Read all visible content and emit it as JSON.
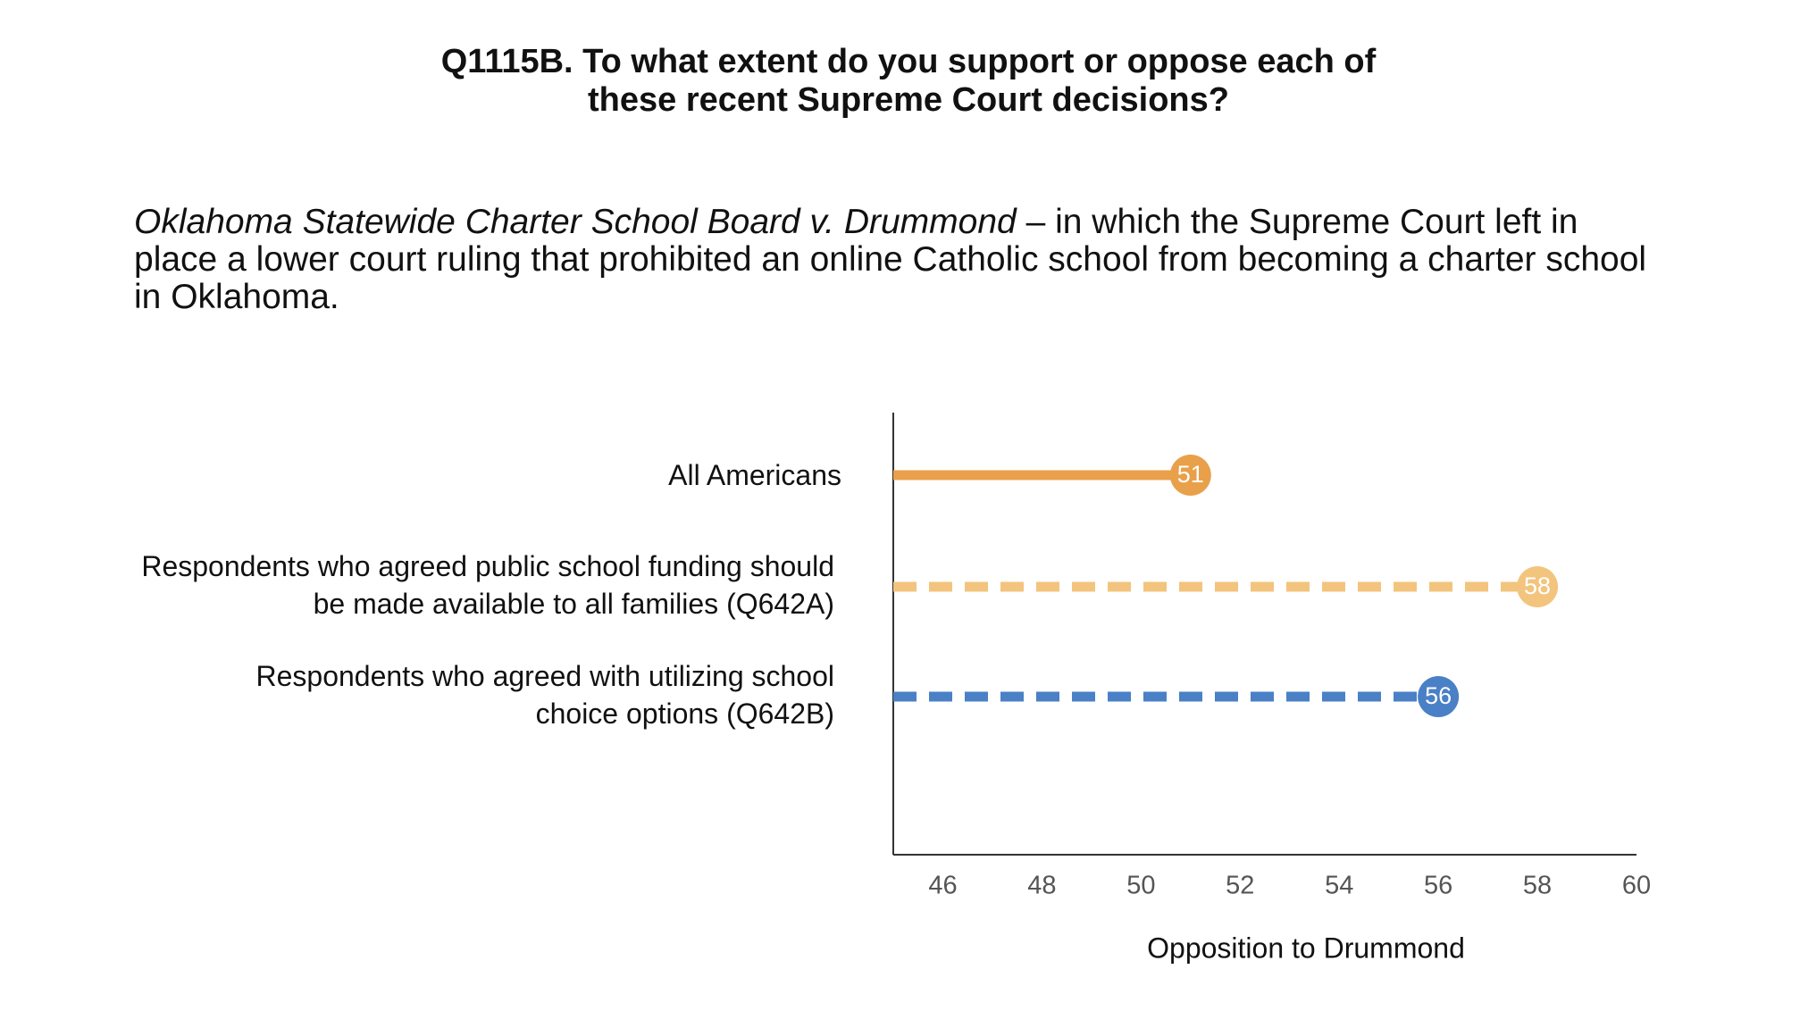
{
  "chart_data": {
    "type": "lollipop",
    "title": [
      "Q1115B. To what extent do you support or oppose each of",
      "these recent Supreme Court decisions?"
    ],
    "subtitle": {
      "case": "Oklahoma Statewide Charter School Board v. Drummond",
      "description": "– in which the Supreme Court left in place a lower court ruling that prohibited an online Catholic school from becoming a charter school in Oklahoma."
    },
    "categories": [
      "All Americans",
      "Respondents who agreed public school funding should be made available to all families (Q642A)",
      "Respondents who agreed with utilizing school choice options (Q642B)"
    ],
    "values": [
      51,
      58,
      56
    ],
    "colors": [
      "#e9a04a",
      "#f3c47e",
      "#4a80c6"
    ],
    "dashed": [
      false,
      true,
      true
    ],
    "x_label": "Opposition to Drummond",
    "xlim": [
      45,
      60
    ],
    "xticks": [
      46,
      48,
      50,
      52,
      54,
      56,
      58,
      60
    ]
  }
}
